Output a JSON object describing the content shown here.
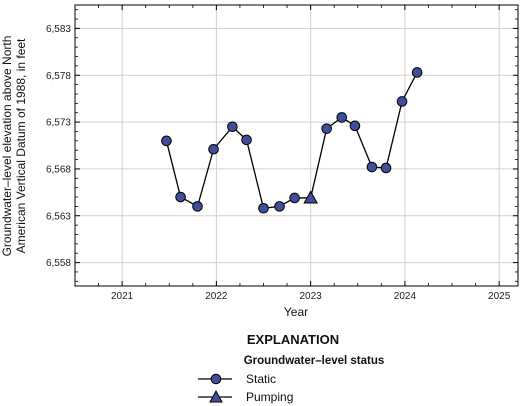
{
  "chart_data": {
    "type": "line",
    "xlabel": "Year",
    "ylabel_lines": [
      "Groundwater–level elevation above North",
      "American Vertical Datum of 1988, in feet"
    ],
    "xlim": [
      2020.5,
      2025.2
    ],
    "ylim": [
      6555.5,
      6585.5
    ],
    "x_ticks": [
      2021,
      2022,
      2023,
      2024,
      2025
    ],
    "x_tick_labels": [
      "2021",
      "2022",
      "2023",
      "2024",
      "2025"
    ],
    "y_ticks": [
      6558,
      6563,
      6568,
      6573,
      6578,
      6583
    ],
    "y_tick_labels": [
      "6,558",
      "6,563",
      "6,568",
      "6,573",
      "6,578",
      "6,583"
    ],
    "grid": true,
    "series": [
      {
        "name": "Groundwater-level elevation",
        "points": [
          {
            "x": 2021.47,
            "y": 6571.0,
            "status": "Static"
          },
          {
            "x": 2021.62,
            "y": 6565.0,
            "status": "Static"
          },
          {
            "x": 2021.8,
            "y": 6564.0,
            "status": "Static"
          },
          {
            "x": 2021.97,
            "y": 6570.1,
            "status": "Static"
          },
          {
            "x": 2022.17,
            "y": 6572.5,
            "status": "Static"
          },
          {
            "x": 2022.32,
            "y": 6571.1,
            "status": "Static"
          },
          {
            "x": 2022.5,
            "y": 6563.8,
            "status": "Static"
          },
          {
            "x": 2022.67,
            "y": 6564.0,
            "status": "Static"
          },
          {
            "x": 2022.83,
            "y": 6564.9,
            "status": "Static"
          },
          {
            "x": 2023.0,
            "y": 6564.9,
            "status": "Pumping"
          },
          {
            "x": 2023.17,
            "y": 6572.3,
            "status": "Static"
          },
          {
            "x": 2023.33,
            "y": 6573.5,
            "status": "Static"
          },
          {
            "x": 2023.47,
            "y": 6572.6,
            "status": "Static"
          },
          {
            "x": 2023.65,
            "y": 6568.2,
            "status": "Static"
          },
          {
            "x": 2023.8,
            "y": 6568.1,
            "status": "Static"
          },
          {
            "x": 2023.97,
            "y": 6575.2,
            "status": "Static"
          },
          {
            "x": 2024.13,
            "y": 6578.3,
            "status": "Static"
          }
        ]
      }
    ],
    "legend": {
      "heading": "EXPLANATION",
      "subheading": "Groundwater–level status",
      "entries": [
        {
          "label": "Static",
          "marker": "circle"
        },
        {
          "label": "Pumping",
          "marker": "triangle"
        }
      ]
    },
    "colors": {
      "marker_fill": "#3f4f9e",
      "marker_stroke": "#000000",
      "line": "#000000",
      "grid": "#cfcfcf"
    }
  }
}
